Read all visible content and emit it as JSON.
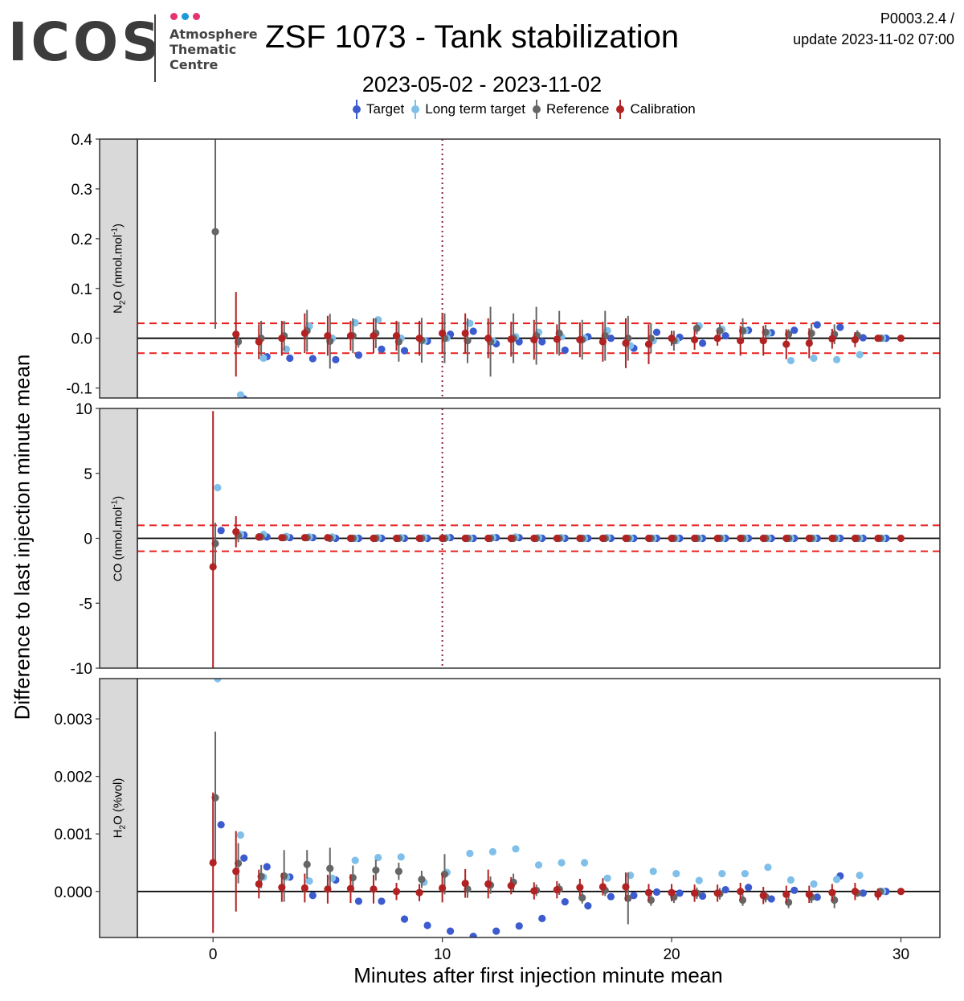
{
  "header": {
    "logo_word": "ICOS",
    "logo_sub_1": "Atmosphere",
    "logo_sub_2": "Thematic",
    "logo_sub_3": "Centre",
    "logo_dot_colors": [
      "#e6336f",
      "#1a9ad6",
      "#e6336f"
    ],
    "title": "ZSF 1073 - Tank stabilization",
    "subtitle": "2023-05-02 - 2023-11-02",
    "code": "P0003.2.4 /",
    "update": "update  2023-11-02 07:00"
  },
  "legend": [
    {
      "name": "Target",
      "color": "#3b5bcf"
    },
    {
      "name": "Long term target",
      "color": "#7fbfea"
    },
    {
      "name": "Reference",
      "color": "#666666"
    },
    {
      "name": "Calibration",
      "color": "#b22222"
    }
  ],
  "chart_data": {
    "type": "scatter",
    "xlabel": "Minutes after first injection minute mean",
    "ylabel": "Difference to last injection minute mean",
    "xlim": [
      -3.3,
      31.7
    ],
    "x_ticks": [
      0,
      10,
      20,
      30
    ],
    "vline_x": 10,
    "grid": false,
    "legend_position": "top",
    "panels": [
      {
        "id": "n2o",
        "strip_main": "N",
        "strip_sub": "2",
        "strip_mid": "O (nmol.mol",
        "strip_sup": "-1",
        "strip_end": ")",
        "ylim": [
          -0.12,
          0.4
        ],
        "y_ticks": [
          -0.1,
          0,
          0.1,
          0.2,
          0.3,
          0.4
        ],
        "y_tick_labels": [
          "-0.1",
          "0.0",
          "0.1",
          "0.2",
          "0.3",
          "0.4"
        ],
        "threshold": 0.03,
        "series": [
          {
            "name": "Target",
            "color": "#3b5bcf",
            "x_offset": 0.35,
            "values": [
              null,
              -0.122,
              -0.037,
              -0.04,
              -0.041,
              -0.043,
              -0.034,
              -0.022,
              -0.025,
              -0.006,
              0.008,
              0.014,
              -0.011,
              -0.007,
              -0.007,
              -0.024,
              0.003,
              0.0,
              -0.02,
              0.012,
              0.002,
              -0.01,
              0.005,
              0.016,
              0.011,
              0.016,
              0.027,
              0.022,
              0.001,
              0.0,
              null
            ],
            "err": null
          },
          {
            "name": "Long term target",
            "color": "#7fbfea",
            "x_offset": 0.2,
            "values": [
              null,
              -0.114,
              -0.04,
              -0.022,
              0.024,
              0.0,
              0.031,
              0.037,
              0.0,
              -0.005,
              0.0,
              0.03,
              -0.005,
              0.003,
              0.012,
              0.003,
              0.0,
              0.015,
              -0.015,
              -0.005,
              -0.005,
              0.025,
              0.018,
              0.015,
              0.01,
              -0.045,
              -0.04,
              -0.043,
              -0.033,
              0.0,
              null
            ],
            "err": null
          },
          {
            "name": "Reference",
            "color": "#666666",
            "x_offset": 0.1,
            "values": [
              0.214,
              -0.007,
              0.0,
              0.005,
              0.015,
              -0.006,
              0.005,
              0.01,
              -0.007,
              -0.004,
              0.0,
              -0.005,
              -0.007,
              0.0,
              0.005,
              0.01,
              -0.003,
              0.005,
              0.0,
              0.0,
              -0.005,
              0.02,
              0.015,
              0.015,
              0.012,
              0.008,
              0.01,
              0.008,
              0.006,
              0.0,
              null
            ],
            "err": [
              0.195,
              0.012,
              0.035,
              0.03,
              0.042,
              0.055,
              0.035,
              0.03,
              0.04,
              0.045,
              0.05,
              0.045,
              0.07,
              0.05,
              0.058,
              0.045,
              0.04,
              0.05,
              0.045,
              0.03,
              0.02,
              0.012,
              0.015,
              0.025,
              0.015,
              0.01,
              0.02,
              0.02,
              0.01,
              0.0,
              null
            ]
          },
          {
            "name": "Calibration",
            "color": "#b22222",
            "x_offset": 0.0,
            "values": [
              null,
              0.008,
              -0.007,
              0.0,
              0.01,
              0.005,
              0.005,
              0.005,
              0.005,
              0.0,
              0.01,
              0.01,
              0.0,
              -0.002,
              -0.003,
              -0.002,
              -0.003,
              -0.007,
              -0.01,
              -0.012,
              0.0,
              -0.003,
              0.0,
              -0.005,
              -0.005,
              -0.012,
              -0.01,
              -0.001,
              -0.003,
              0.0,
              0.0
            ],
            "err": [
              null,
              0.085,
              0.035,
              0.035,
              0.04,
              0.04,
              0.03,
              0.035,
              0.03,
              0.035,
              0.04,
              0.04,
              0.04,
              0.035,
              0.04,
              0.03,
              0.035,
              0.04,
              0.05,
              0.04,
              0.015,
              0.02,
              0.015,
              0.03,
              0.03,
              0.03,
              0.03,
              0.02,
              0.015,
              0.0,
              0.0
            ]
          }
        ]
      },
      {
        "id": "co",
        "strip_main": "CO (nmol.mol",
        "strip_sub": "",
        "strip_mid": "",
        "strip_sup": "-1",
        "strip_end": ")",
        "ylim": [
          -10,
          10
        ],
        "y_ticks": [
          -10,
          -5,
          0,
          5,
          10
        ],
        "y_tick_labels": [
          "-10",
          "-5",
          "0",
          "5",
          "10"
        ],
        "threshold": 1,
        "series": [
          {
            "name": "Target",
            "color": "#3b5bcf",
            "x_offset": 0.35,
            "values": [
              0.6,
              0.25,
              0.1,
              0.05,
              0.05,
              0.0,
              0.0,
              0.0,
              0.0,
              0.0,
              0.05,
              0.0,
              0.05,
              0.05,
              0.0,
              0.0,
              0.0,
              0.0,
              0.0,
              0.0,
              0.0,
              0.0,
              0.0,
              0.0,
              0.0,
              0.0,
              0.0,
              0.0,
              0.0,
              0.0,
              null
            ],
            "err": null
          },
          {
            "name": "Long term target",
            "color": "#7fbfea",
            "x_offset": 0.2,
            "values": [
              3.9,
              0.3,
              0.3,
              0.15,
              0.1,
              0.1,
              0.0,
              0.05,
              0.05,
              0.05,
              0.05,
              0.0,
              0.05,
              0.1,
              0.05,
              0.05,
              0.0,
              0.05,
              0.0,
              0.0,
              0.0,
              0.0,
              0.0,
              0.0,
              0.0,
              0.0,
              0.0,
              0.0,
              0.0,
              0.0,
              null
            ],
            "err": null
          },
          {
            "name": "Reference",
            "color": "#666666",
            "x_offset": 0.1,
            "values": [
              -0.4,
              0.2,
              0.1,
              0.05,
              0.05,
              0.0,
              0.0,
              0.0,
              0.0,
              0.0,
              0.0,
              0.0,
              0.0,
              0.0,
              0.0,
              0.0,
              0.0,
              0.0,
              0.0,
              0.0,
              0.0,
              0.0,
              0.0,
              0.0,
              0.0,
              0.0,
              0.0,
              0.0,
              0.0,
              0.0,
              null
            ],
            "err": [
              1.6,
              0.5,
              0.2,
              0.15,
              0.1,
              0.1,
              0.1,
              0.1,
              0.05,
              0.05,
              0.05,
              0.05,
              0.05,
              0.05,
              0.05,
              0.05,
              0.05,
              0.05,
              0.05,
              0.05,
              0.05,
              0.05,
              0.05,
              0.05,
              0.05,
              0.05,
              0.05,
              0.05,
              0.05,
              0.0,
              null
            ]
          },
          {
            "name": "Calibration",
            "color": "#b22222",
            "x_offset": 0.0,
            "values": [
              -2.2,
              0.5,
              0.1,
              0.05,
              0.05,
              0.05,
              0.0,
              0.0,
              0.0,
              0.0,
              0.0,
              0.0,
              0.0,
              0.0,
              0.0,
              0.0,
              0.0,
              0.0,
              0.0,
              0.0,
              0.0,
              0.0,
              0.0,
              0.0,
              0.0,
              0.0,
              0.0,
              0.0,
              0.0,
              0.0,
              0.0
            ],
            "err": [
              12,
              1.2,
              0.3,
              0.2,
              0.15,
              0.1,
              0.1,
              0.1,
              0.1,
              0.1,
              0.1,
              0.1,
              0.1,
              0.1,
              0.1,
              0.1,
              0.1,
              0.1,
              0.1,
              0.1,
              0.1,
              0.1,
              0.1,
              0.1,
              0.1,
              0.1,
              0.1,
              0.1,
              0.1,
              0.0,
              0.0
            ]
          }
        ]
      },
      {
        "id": "h2o",
        "strip_main": "H",
        "strip_sub": "2",
        "strip_mid": "O (%vol)",
        "strip_sup": "",
        "strip_end": "",
        "ylim": [
          -0.0008,
          0.0037
        ],
        "y_ticks": [
          0,
          0.001,
          0.002,
          0.003
        ],
        "y_tick_labels": [
          "0.000",
          "0.001",
          "0.002",
          "0.003"
        ],
        "threshold": null,
        "series": [
          {
            "name": "Target",
            "color": "#3b5bcf",
            "x_offset": 0.35,
            "values": [
              0.00116,
              0.00058,
              0.00043,
              0.00025,
              -7e-05,
              0.0002,
              -0.00017,
              -0.00017,
              -0.00048,
              -0.00059,
              -0.00069,
              -0.00078,
              -0.00069,
              -0.0006,
              -0.00047,
              -0.00018,
              -0.00025,
              -9e-05,
              -7e-05,
              -1e-05,
              -3e-05,
              -8e-05,
              3e-05,
              7e-05,
              -0.00013,
              2e-05,
              -0.0001,
              0.00027,
              -3e-05,
              0.0,
              null
            ],
            "err": null
          },
          {
            "name": "Long term target",
            "color": "#7fbfea",
            "x_offset": 0.2,
            "values": [
              0.0037,
              0.00098,
              0.00025,
              0.00025,
              0.00018,
              0.00023,
              0.00054,
              0.00059,
              0.0006,
              0.00016,
              0.00033,
              0.00066,
              0.00069,
              0.00074,
              0.00046,
              0.0005,
              0.0005,
              0.00023,
              0.00028,
              0.00035,
              0.00031,
              0.00019,
              0.00031,
              0.00031,
              0.00042,
              0.0002,
              0.00013,
              0.00021,
              0.00028,
              0.0,
              null
            ],
            "err": null
          },
          {
            "name": "Reference",
            "color": "#666666",
            "x_offset": 0.1,
            "values": [
              0.00163,
              0.00049,
              0.00026,
              0.00027,
              0.00047,
              0.0004,
              0.00024,
              0.00037,
              0.00035,
              0.00021,
              0.0003,
              4e-05,
              0.00011,
              0.00016,
              2e-05,
              4e-05,
              -0.00011,
              2e-05,
              -0.00012,
              -0.00015,
              -0.0001,
              -3e-05,
              -4e-05,
              -0.00015,
              -9e-05,
              -0.00019,
              -0.0001,
              -0.00015,
              -3e-05,
              0.0,
              null
            ],
            "err": [
              0.00115,
              0.00035,
              0.0002,
              0.00045,
              0.00025,
              0.00036,
              0.00021,
              0.00018,
              0.00015,
              0.00015,
              0.00035,
              0.00015,
              0.00015,
              0.00015,
              0.0001,
              0.0001,
              0.0001,
              0.0001,
              0.00045,
              0.0001,
              0.0001,
              0.0001,
              0.0001,
              0.0001,
              0.0001,
              0.0001,
              0.0001,
              0.00014,
              5e-05,
              0.0,
              null
            ]
          },
          {
            "name": "Calibration",
            "color": "#b22222",
            "x_offset": 0.0,
            "values": [
              0.0005,
              0.00035,
              0.00013,
              7e-05,
              6e-05,
              4e-05,
              5e-05,
              4e-05,
              0.0,
              -2e-05,
              6e-05,
              0.00014,
              0.00013,
              0.0001,
              1e-05,
              3e-05,
              7e-05,
              8e-05,
              8e-05,
              -2e-05,
              -2e-05,
              -3e-05,
              -3e-05,
              0.0,
              -7e-05,
              -5e-05,
              -5e-05,
              -2e-05,
              0.0,
              -5e-05,
              0.0
            ],
            "err": [
              0.00122,
              0.0007,
              0.00025,
              0.00025,
              0.00025,
              0.00025,
              0.00025,
              0.00025,
              0.00015,
              0.00015,
              0.00025,
              0.00025,
              0.00025,
              0.00015,
              0.00015,
              0.00015,
              0.00015,
              0.00015,
              0.00025,
              0.00015,
              0.00015,
              0.00015,
              0.00015,
              0.00015,
              0.00015,
              0.00015,
              0.00015,
              0.00015,
              0.00015,
              0.0001,
              0.0
            ]
          }
        ]
      }
    ]
  }
}
